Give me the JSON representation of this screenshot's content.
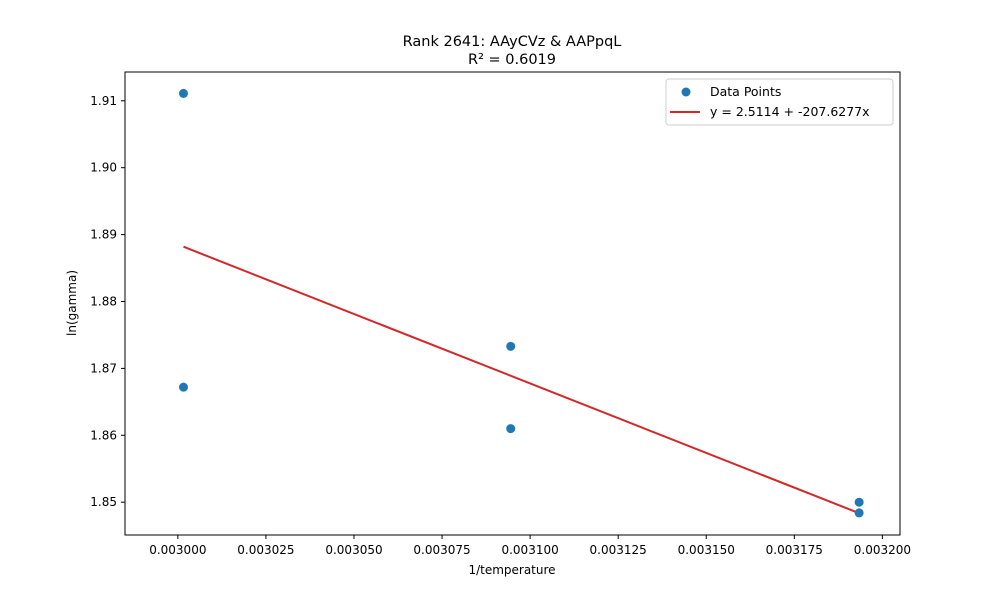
{
  "chart_data": {
    "type": "scatter",
    "title": "Rank 2641: AAyCVz & AAPpqL",
    "subtitle": "R² = 0.6019",
    "xlabel": "1/temperature",
    "ylabel": "ln(gamma)",
    "xlim": [
      0.002985,
      0.003205
    ],
    "ylim": [
      1.8451,
      1.9143
    ],
    "x_ticks": [
      0.003,
      0.003025,
      0.00305,
      0.003075,
      0.0031,
      0.003125,
      0.00315,
      0.003175,
      0.0032
    ],
    "x_tick_labels": [
      "0.003000",
      "0.003025",
      "0.003050",
      "0.003075",
      "0.003100",
      "0.003125",
      "0.003150",
      "0.003175",
      "0.003200"
    ],
    "y_ticks": [
      1.85,
      1.86,
      1.87,
      1.88,
      1.89,
      1.9,
      1.91
    ],
    "y_tick_labels": [
      "1.85",
      "1.86",
      "1.87",
      "1.88",
      "1.89",
      "1.90",
      "1.91"
    ],
    "grid": false,
    "legend_position": "top-right",
    "series": [
      {
        "name": "Data Points",
        "kind": "scatter",
        "color": "#1f77b4",
        "points": [
          {
            "x": 0.0030016,
            "y": 1.9111
          },
          {
            "x": 0.0030016,
            "y": 1.8672
          },
          {
            "x": 0.0030945,
            "y": 1.8733
          },
          {
            "x": 0.0030945,
            "y": 1.861
          },
          {
            "x": 0.0031934,
            "y": 1.85
          },
          {
            "x": 0.0031934,
            "y": 1.8484
          }
        ]
      },
      {
        "name": "y = 2.5114 + -207.6277x",
        "kind": "line",
        "color": "#d62728",
        "intercept": 2.5114,
        "slope": -207.6277,
        "x_range": [
          0.0030016,
          0.0031934
        ]
      }
    ]
  }
}
